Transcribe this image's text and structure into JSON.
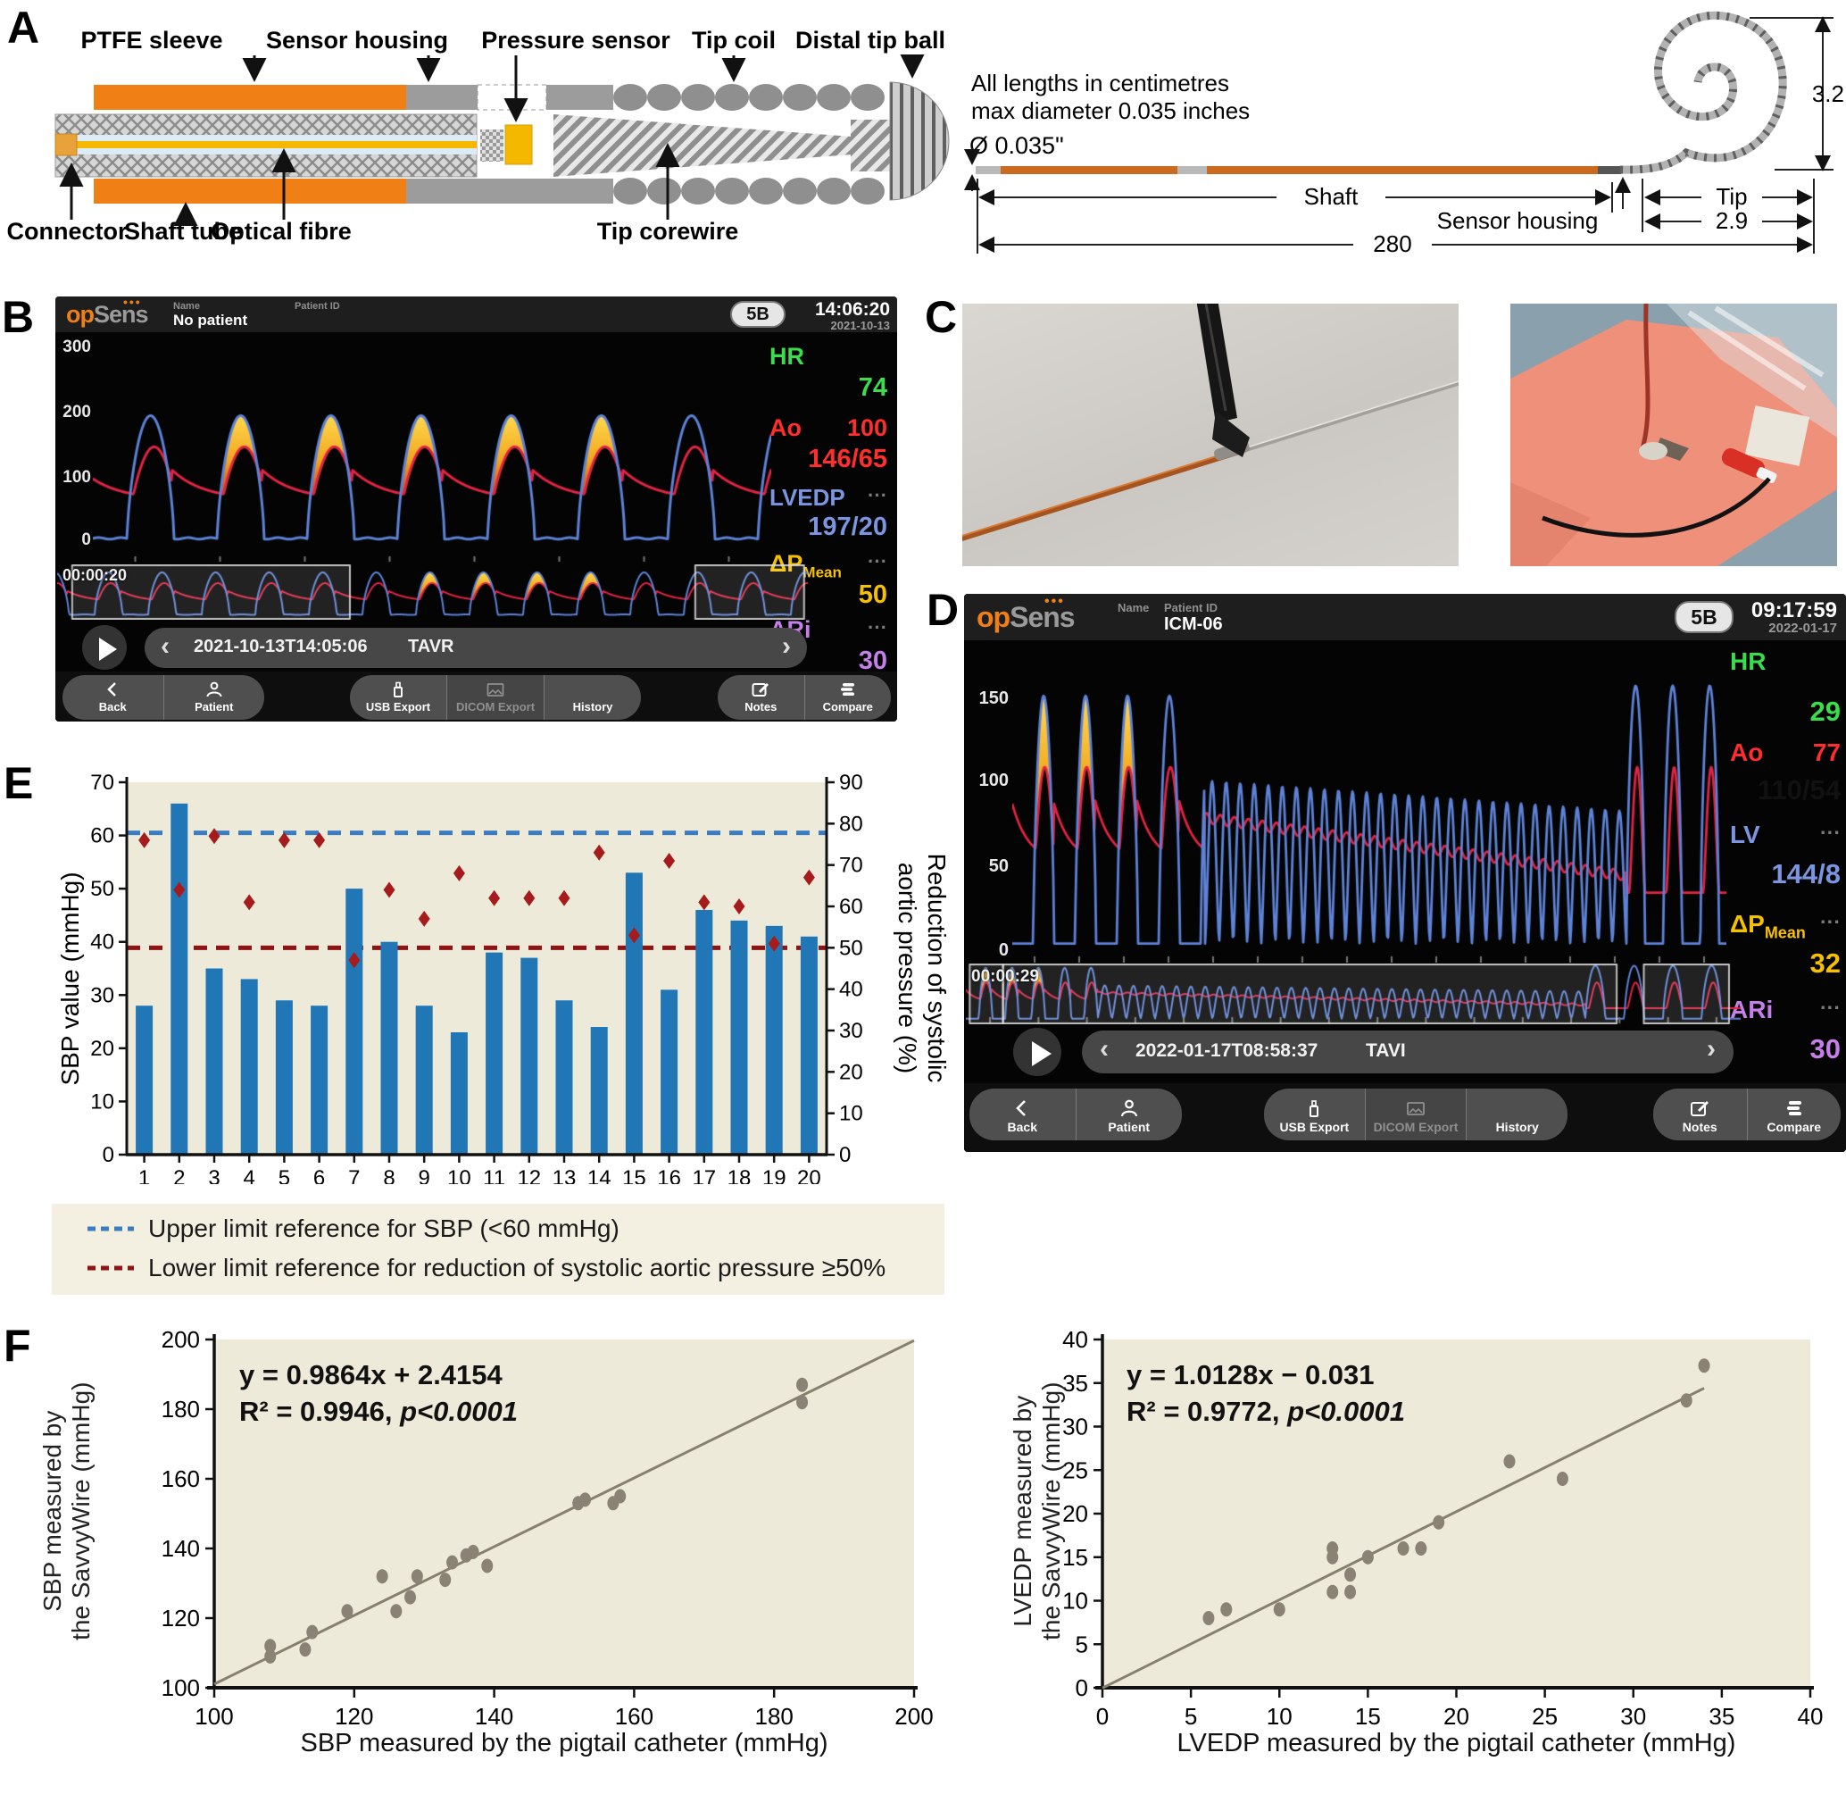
{
  "figure": {
    "panel_labels": {
      "a": "A",
      "b": "B",
      "c": "C",
      "d": "D",
      "e": "E",
      "f": "F"
    }
  },
  "panel_a": {
    "top_labels": [
      "PTFE sleeve",
      "Sensor housing",
      "Pressure sensor",
      "Tip coil",
      "Distal tip ball"
    ],
    "bottom_labels": [
      "Connector",
      "Shaft tube",
      "Optical fibre",
      "Tip corewire"
    ],
    "note_line1": "All lengths in centimetres",
    "note_line2": "max diameter 0.035 inches",
    "diameter_label": "Ø 0.035\"",
    "shaft_label": "Shaft",
    "sensor_housing_label": "Sensor housing",
    "tip_label": "Tip",
    "dim_shaft": "280",
    "dim_tip": "2.9",
    "dim_coil": "3.2"
  },
  "monitor_b": {
    "logo_op": "op",
    "logo_sens": "Sens",
    "name_label": "Name",
    "name_value": "No patient",
    "patient_id_label": "Patient ID",
    "patient_id_value": "",
    "badge": "5B",
    "time": "14:06:20",
    "date": "2021-10-13",
    "y_ticks": [
      "300",
      "200",
      "100",
      "0"
    ],
    "metrics": [
      {
        "label": "HR",
        "aux": "",
        "value": "74",
        "color": "#3bdc4e"
      },
      {
        "label": "Ao",
        "aux": "100",
        "value": "146/65",
        "color": "#ff2e2e"
      },
      {
        "label": "LVEDP",
        "aux": "···",
        "value": "197/20",
        "color": "#7b95e0"
      },
      {
        "label": "ΔP",
        "sub": "Mean",
        "aux": "···",
        "value": "50",
        "color": "#f5c000"
      },
      {
        "label": "ARi",
        "aux": "···",
        "value": "30",
        "color": "#c47fe8"
      }
    ],
    "clip_time": "00:00:20",
    "nav_prev": "‹",
    "nav_next": "›",
    "record": "2021-10-13T14:05:06",
    "procedure": "TAVR",
    "buttons": {
      "back": "Back",
      "patient": "Patient",
      "usb": "USB Export",
      "dicom": "DICOM Export",
      "history": "History",
      "notes": "Notes",
      "compare": "Compare"
    },
    "waveform": {
      "lv_peak": 196,
      "lv_min": 7,
      "ao_sys": 148,
      "ao_dia": 68,
      "ao_notch": 112,
      "beats": 8
    }
  },
  "monitor_d": {
    "logo_op": "op",
    "logo_sens": "Sens",
    "name_label": "Name",
    "name_value": "",
    "patient_id_label": "Patient ID",
    "patient_id_value": "ICM-06",
    "badge": "5B",
    "time": "09:17:59",
    "date": "2022-01-17",
    "y_ticks": [
      "150",
      "100",
      "50",
      "0"
    ],
    "metrics": [
      {
        "label": "HR",
        "aux": "",
        "value": "29",
        "color": "#3bdc4e"
      },
      {
        "label": "Ao",
        "aux": "77",
        "value": "110/54",
        "color": "#ff2e2e"
      },
      {
        "label": "LV",
        "aux": "···",
        "value": "144/8",
        "color": "#7b95e0"
      },
      {
        "label": "ΔP",
        "sub": "Mean",
        "aux": "···",
        "value": "32",
        "color": "#f5c000"
      },
      {
        "label": "ARi",
        "aux": "···",
        "value": "30",
        "color": "#c47fe8"
      }
    ],
    "clip_time": "00:00:29",
    "nav_prev": "‹",
    "nav_next": "›",
    "record": "2022-01-17T08:58:37",
    "procedure": "TAVI",
    "buttons": {
      "back": "Back",
      "patient": "Patient",
      "usb": "USB Export",
      "dicom": "DICOM Export",
      "history": "History",
      "notes": "Notes",
      "compare": "Compare"
    },
    "waveform": {
      "lv_peak": 152,
      "lv_min": 6,
      "ao_sys": 110,
      "ao_dia": 54,
      "rapid_cycles": 30,
      "pre_beats": 5,
      "post_beats": 3
    }
  },
  "chart_data": [
    {
      "id": "tavr_rapid_pacing_outcomes",
      "type": "bar",
      "categories": [
        "1",
        "2",
        "3",
        "4",
        "5",
        "6",
        "7",
        "8",
        "9",
        "10",
        "11",
        "12",
        "13",
        "14",
        "15",
        "16",
        "17",
        "18",
        "19",
        "20"
      ],
      "series": [
        {
          "name": "SBP value (mmHg)",
          "type": "bar",
          "axis": "left",
          "values": [
            28,
            66,
            35,
            33,
            29,
            28,
            50,
            40,
            28,
            23,
            38,
            37,
            29,
            24,
            53,
            31,
            46,
            44,
            43,
            41
          ]
        },
        {
          "name": "Reduction of systolic aortic pressure (%)",
          "type": "scatter",
          "marker": "diamond",
          "axis": "right",
          "values": [
            76,
            64,
            77,
            61,
            76,
            76,
            47,
            64,
            57,
            68,
            62,
            62,
            62,
            73,
            53,
            71,
            61,
            60,
            51,
            67
          ]
        }
      ],
      "left_axis": {
        "label": "SBP value (mmHg)",
        "min": 0,
        "max": 70,
        "tick_step": 10
      },
      "right_axis": {
        "label_line1": "Reduction of systolic",
        "label_line2": "aortic pressure (%)",
        "min": 0,
        "max": 90,
        "tick_step": 10
      },
      "reference_lines": [
        {
          "axis": "left",
          "value": 60.5,
          "color": "#3b7dc2",
          "legend": "Upper limit reference for SBP (<60 mmHg)"
        },
        {
          "axis": "right",
          "value": 50,
          "color": "#8f1313",
          "legend": "Lower limit reference for reduction of systolic aortic pressure ≥50%"
        }
      ],
      "bar_color": "#2176b5",
      "marker_color": "#a61c1c",
      "plot_bg": "#eeead9",
      "grid": false,
      "legend_position": "below"
    },
    {
      "id": "sbp_correlation",
      "type": "scatter",
      "points": [
        [
          108,
          109
        ],
        [
          108,
          112
        ],
        [
          113,
          111
        ],
        [
          114,
          116
        ],
        [
          119,
          122
        ],
        [
          124,
          132
        ],
        [
          126,
          122
        ],
        [
          128,
          126
        ],
        [
          129,
          132
        ],
        [
          133,
          131
        ],
        [
          134,
          136
        ],
        [
          136,
          138
        ],
        [
          137,
          139
        ],
        [
          139,
          135
        ],
        [
          152,
          153
        ],
        [
          153,
          154
        ],
        [
          157,
          153
        ],
        [
          158,
          155
        ],
        [
          184,
          182
        ],
        [
          184,
          187
        ]
      ],
      "fit_line": {
        "slope": 0.9864,
        "intercept": 2.4154,
        "x_start": 100,
        "x_end": 200
      },
      "equation": "y = 0.9864x + 2.4154",
      "r2_text": "R² = 0.9946, ",
      "p_text": "p<0.0001",
      "xlabel": "SBP measured by the pigtail catheter (mmHg)",
      "ylabel_line1": "SBP measured by",
      "ylabel_line2": "the SavvyWire (mmHg)",
      "xlim": [
        100,
        200
      ],
      "ylim": [
        100,
        200
      ],
      "tick_step": 20,
      "point_color": "#8a8274",
      "line_color": "#87806f",
      "plot_bg": "#eeead9",
      "grid": false
    },
    {
      "id": "lvedp_correlation",
      "type": "scatter",
      "points": [
        [
          6,
          8
        ],
        [
          7,
          9
        ],
        [
          10,
          9
        ],
        [
          13,
          11
        ],
        [
          13,
          15
        ],
        [
          13,
          16
        ],
        [
          14,
          11
        ],
        [
          14,
          13
        ],
        [
          15,
          15
        ],
        [
          17,
          16
        ],
        [
          18,
          16
        ],
        [
          19,
          19
        ],
        [
          23,
          26
        ],
        [
          26,
          24
        ],
        [
          33,
          33
        ],
        [
          34,
          37
        ]
      ],
      "fit_line": {
        "slope": 1.0128,
        "intercept": -0.031,
        "x_start": 0,
        "x_end": 34
      },
      "equation": "y = 1.0128x − 0.031",
      "r2_text": "R² = 0.9772, ",
      "p_text": "p<0.0001",
      "xlabel": "LVEDP measured by the pigtail catheter (mmHg)",
      "ylabel_line1": "LVEDP measured by",
      "ylabel_line2": "the SavvyWire (mmHg)",
      "xlim": [
        0,
        40
      ],
      "ylim": [
        0,
        40
      ],
      "tick_step": 5,
      "point_color": "#8a8274",
      "line_color": "#87806f",
      "plot_bg": "#eeead9",
      "grid": false
    }
  ]
}
